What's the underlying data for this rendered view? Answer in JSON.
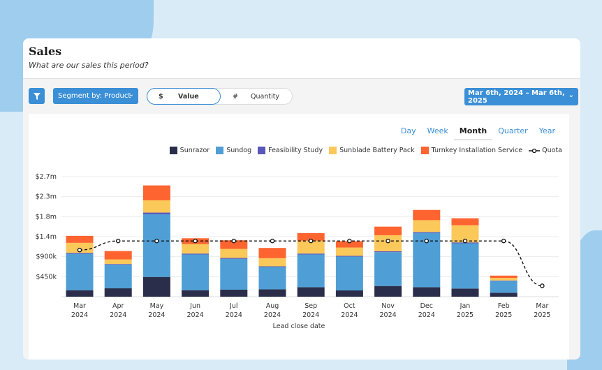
{
  "header": {
    "title": "Sales",
    "subtitle": "What are our sales this period?"
  },
  "toolbar": {
    "filter_icon": "filter-icon",
    "segment_label": "Segment by: Product",
    "value_symbol": "$",
    "value_label": "Value",
    "quantity_symbol": "#",
    "quantity_label": "Quantity",
    "selected_mode": "Value",
    "date_range": "Mar 6th, 2024 – Mar 6th, 2025"
  },
  "tabs": [
    {
      "label": "Day"
    },
    {
      "label": "Week"
    },
    {
      "label": "Month",
      "active": true
    },
    {
      "label": "Quarter"
    },
    {
      "label": "Year"
    }
  ],
  "chart_data": {
    "type": "bar",
    "stacked": true,
    "xlabel": "Lead close date",
    "ylabel": "",
    "ylim": [
      0,
      2700000
    ],
    "yticks": [
      450000,
      900000,
      1350000,
      1800000,
      2250000,
      2700000
    ],
    "ytick_labels": [
      "$450k",
      "$900k",
      "$1.4m",
      "$1.8m",
      "$2.3m",
      "$2.7m"
    ],
    "grid": true,
    "legend_placement": "top-right",
    "categories": [
      [
        "Mar",
        "2024"
      ],
      [
        "Apr",
        "2024"
      ],
      [
        "May",
        "2024"
      ],
      [
        "Jun",
        "2024"
      ],
      [
        "Jul",
        "2024"
      ],
      [
        "Aug",
        "2024"
      ],
      [
        "Sep",
        "2024"
      ],
      [
        "Oct",
        "2024"
      ],
      [
        "Nov",
        "2024"
      ],
      [
        "Dec",
        "2024"
      ],
      [
        "Jan",
        "2025"
      ],
      [
        "Feb",
        "2025"
      ],
      [
        "Mar",
        "2025"
      ]
    ],
    "series": [
      {
        "name": "Sunrazor",
        "color": "#2b2e4a",
        "values": [
          146000,
          188000,
          444000,
          146000,
          157000,
          167000,
          214000,
          141000,
          240000,
          214000,
          183000,
          89000,
          0
        ]
      },
      {
        "name": "Sundog",
        "color": "#4f9fd6",
        "values": [
          820000,
          532000,
          1410000,
          804000,
          694000,
          501000,
          736000,
          762000,
          762000,
          1221000,
          1018000,
          266000,
          0
        ]
      },
      {
        "name": "Feasibility Study",
        "color": "#5b57b8",
        "values": [
          20000,
          15000,
          37000,
          20000,
          20000,
          15000,
          20000,
          15000,
          20000,
          20000,
          20000,
          10000,
          0
        ]
      },
      {
        "name": "Sunblade Battery Pack",
        "color": "#fbc85a",
        "values": [
          225000,
          104000,
          277000,
          214000,
          204000,
          183000,
          292000,
          188000,
          360000,
          266000,
          386000,
          57000,
          0
        ]
      },
      {
        "name": "Turnkey Installation Service",
        "color": "#fd6430",
        "values": [
          157000,
          188000,
          334000,
          130000,
          193000,
          230000,
          167000,
          141000,
          193000,
          230000,
          157000,
          52000,
          0
        ]
      }
    ],
    "quota": {
      "name": "Quota",
      "type": "line",
      "style": "dashed",
      "color": "#111111",
      "values": [
        1049000,
        1253000,
        1253000,
        1253000,
        1253000,
        1253000,
        1253000,
        1253000,
        1253000,
        1253000,
        1253000,
        1253000,
        245000
      ]
    }
  }
}
